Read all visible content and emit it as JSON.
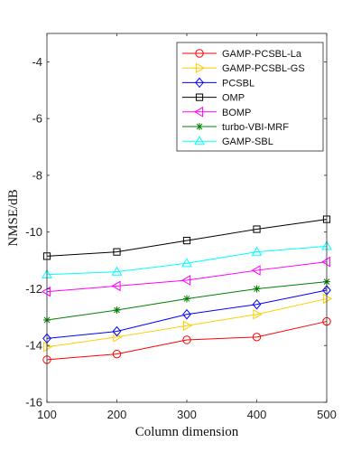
{
  "chart_data": {
    "type": "line",
    "title": "",
    "xlabel": "Column dimension",
    "ylabel": "NMSE/dB",
    "x": [
      100,
      200,
      300,
      400,
      500
    ],
    "xlim": [
      100,
      500
    ],
    "ylim": [
      -16,
      -3
    ],
    "xticks": [
      "100",
      "200",
      "300",
      "400",
      "500"
    ],
    "yticks": [
      "-4",
      "-6",
      "-8",
      "-10",
      "-12",
      "-14",
      "-16"
    ],
    "grid": false,
    "legend_position": "top-right",
    "series": [
      {
        "name": "GAMP-PCSBL-La",
        "color": "#ff0000",
        "marker": "circle",
        "values": [
          -14.5,
          -14.3,
          -13.8,
          -13.7,
          -13.15
        ]
      },
      {
        "name": "GAMP-PCSBL-GS",
        "color": "#ffcc00",
        "marker": "triangle-right",
        "values": [
          -14.05,
          -13.7,
          -13.3,
          -12.9,
          -12.35
        ]
      },
      {
        "name": "PCSBL",
        "color": "#0000ff",
        "marker": "diamond",
        "values": [
          -13.75,
          -13.5,
          -12.9,
          -12.55,
          -12.05
        ]
      },
      {
        "name": "OMP",
        "color": "#000000",
        "marker": "square",
        "values": [
          -10.85,
          -10.7,
          -10.3,
          -9.9,
          -9.55
        ]
      },
      {
        "name": "BOMP",
        "color": "#ff00ff",
        "marker": "triangle-left",
        "values": [
          -12.1,
          -11.9,
          -11.7,
          -11.35,
          -11.05
        ]
      },
      {
        "name": "turbo-VBI-MRF",
        "color": "#008000",
        "marker": "asterisk",
        "values": [
          -13.1,
          -12.75,
          -12.35,
          -12.0,
          -11.75
        ]
      },
      {
        "name": "GAMP-SBL",
        "color": "#00ffff",
        "marker": "triangle-up",
        "values": [
          -11.5,
          -11.4,
          -11.1,
          -10.7,
          -10.5
        ]
      }
    ]
  }
}
